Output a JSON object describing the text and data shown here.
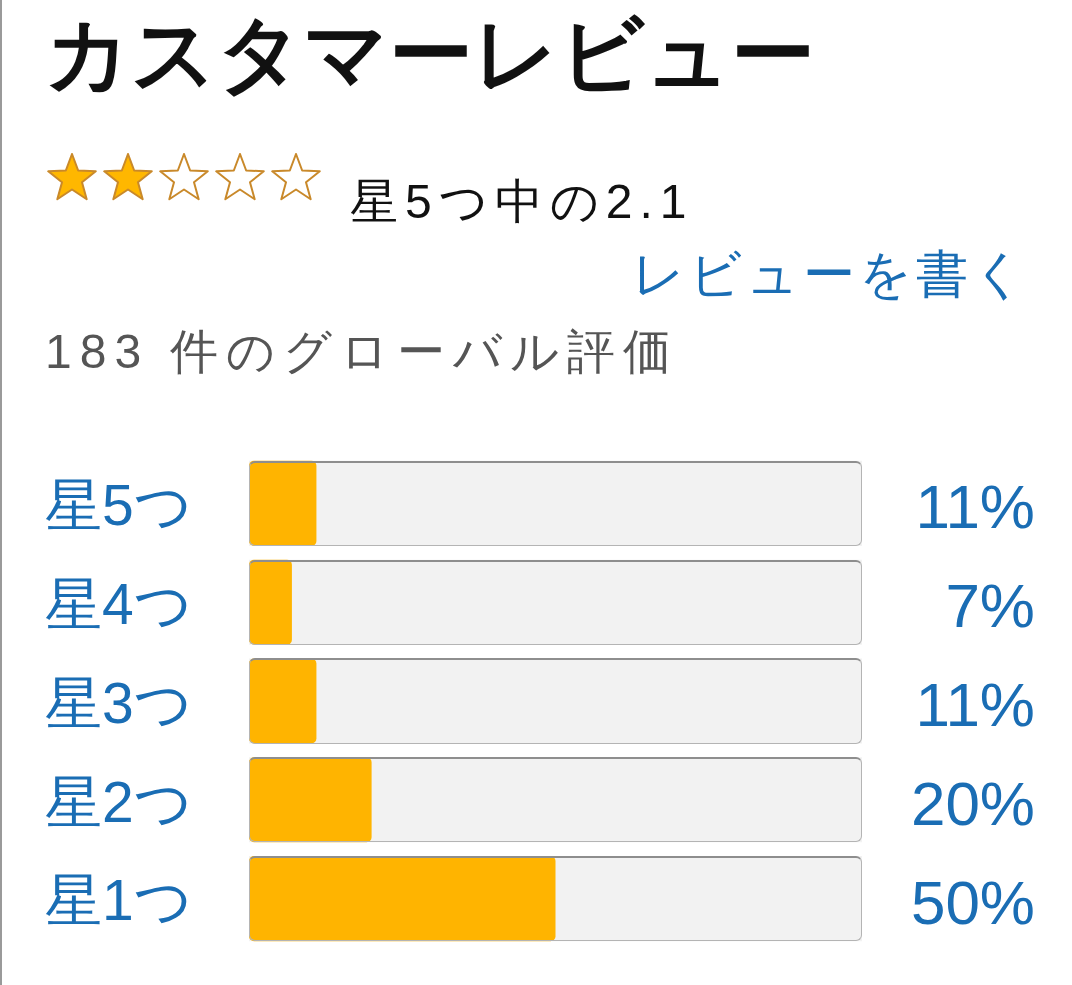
{
  "chart_data": {
    "type": "bar",
    "orientation": "horizontal",
    "title": "カスタマーレビュー",
    "subtitle": "星5つ中の2.1",
    "annotations": [
      "レビューを書く",
      "183 件のグローバル評価"
    ],
    "categories": [
      "星5つ",
      "星4つ",
      "星3つ",
      "星2つ",
      "星1つ"
    ],
    "values": [
      11,
      7,
      11,
      20,
      50
    ],
    "value_labels": [
      "11%",
      "7%",
      "11%",
      "20%",
      "50%"
    ],
    "color": "#ffb400",
    "xlim": [
      0,
      100
    ],
    "tick_labels": "y"
  }
}
